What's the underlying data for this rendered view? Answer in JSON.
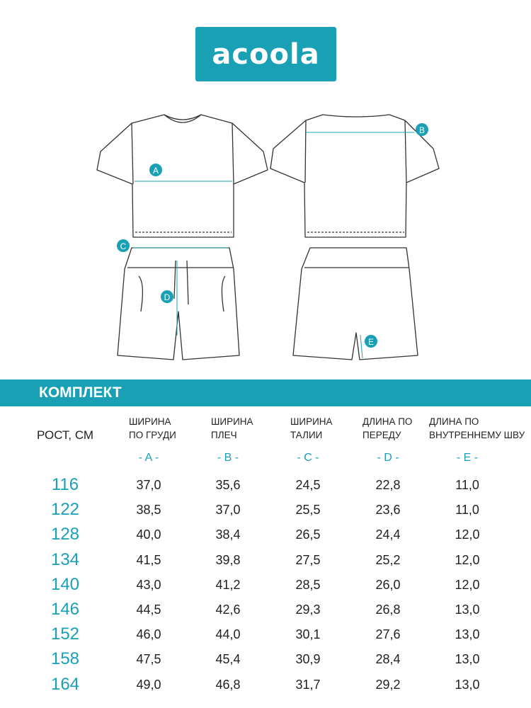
{
  "brand": {
    "logo_text": "acoola",
    "color": "#1aa0b5"
  },
  "diagram": {
    "markers": [
      "A",
      "B",
      "C",
      "D",
      "E"
    ]
  },
  "section": {
    "title": "КОМПЛЕКТ"
  },
  "table": {
    "row_header": "РОСТ, СМ",
    "columns": [
      {
        "line1": "ШИРИНА",
        "line2": "ПО ГРУДИ",
        "letter": "- A -"
      },
      {
        "line1": "ШИРИНА",
        "line2": "ПЛЕЧ",
        "letter": "- B -"
      },
      {
        "line1": "ШИРИНА",
        "line2": "ТАЛИИ",
        "letter": "- C -"
      },
      {
        "line1": "ДЛИНА ПО",
        "line2": "ПЕРЕДУ",
        "letter": "- D -"
      },
      {
        "line1": "ДЛИНА ПО",
        "line2": "ВНУТРЕННЕМУ ШВУ",
        "letter": "- E -"
      }
    ],
    "rows": [
      {
        "size": "116",
        "values": [
          "37,0",
          "35,6",
          "24,5",
          "22,8",
          "11,0"
        ]
      },
      {
        "size": "122",
        "values": [
          "38,5",
          "37,0",
          "25,5",
          "23,6",
          "11,0"
        ]
      },
      {
        "size": "128",
        "values": [
          "40,0",
          "38,4",
          "26,5",
          "24,4",
          "12,0"
        ]
      },
      {
        "size": "134",
        "values": [
          "41,5",
          "39,8",
          "27,5",
          "25,2",
          "12,0"
        ]
      },
      {
        "size": "140",
        "values": [
          "43,0",
          "41,2",
          "28,5",
          "26,0",
          "12,0"
        ]
      },
      {
        "size": "146",
        "values": [
          "44,5",
          "42,6",
          "29,3",
          "26,8",
          "13,0"
        ]
      },
      {
        "size": "152",
        "values": [
          "46,0",
          "44,0",
          "30,1",
          "27,6",
          "13,0"
        ]
      },
      {
        "size": "158",
        "values": [
          "47,5",
          "45,4",
          "30,9",
          "28,4",
          "13,0"
        ]
      },
      {
        "size": "164",
        "values": [
          "49,0",
          "46,8",
          "31,7",
          "29,2",
          "13,0"
        ]
      }
    ]
  }
}
